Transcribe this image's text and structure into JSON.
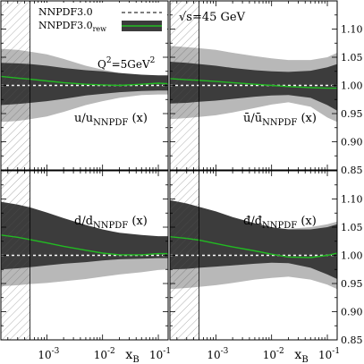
{
  "chart_data": {
    "type": "area",
    "x_scale": "log",
    "xlim": [
      0.00015,
      0.15
    ],
    "ylim": [
      0.85,
      1.15
    ],
    "x_tick_labels": [
      "10^-3",
      "10^-2",
      "10^-1"
    ],
    "y_tick_labels": [
      "0.85",
      "0.90",
      "0.95",
      "1.00",
      "1.05",
      "1.10"
    ],
    "xlabel": "x_B",
    "hatched_region_x": [
      0.00015,
      0.0005
    ],
    "legend": {
      "placement": "top",
      "entries": [
        {
          "label": "NNPDF3.0",
          "style": "dashed"
        },
        {
          "label": "NNPDF3.0_rew",
          "style": "green-line-dark-band"
        }
      ]
    },
    "annotations": [
      {
        "panel": 0,
        "text": "Q^2=5GeV^2"
      },
      {
        "panel": 1,
        "text": "√s=45 GeV"
      }
    ],
    "colors": {
      "light_band": "#b8b8b8",
      "dark_band": "#3c3c3c",
      "central_rew": "#22bb22",
      "baseline": "#ffffff"
    },
    "panels": [
      {
        "label": "u/u_NNPDF (x)",
        "x": [
          0.00015,
          0.0003,
          0.0005,
          0.001,
          0.002,
          0.005,
          0.01,
          0.02,
          0.05,
          0.1,
          0.15
        ],
        "nnpdf_band_low": [
          0.935,
          0.937,
          0.94,
          0.945,
          0.953,
          0.965,
          0.972,
          0.978,
          0.983,
          0.984,
          0.984
        ],
        "nnpdf_band_high": [
          1.065,
          1.063,
          1.06,
          1.055,
          1.047,
          1.035,
          1.028,
          1.022,
          1.017,
          1.016,
          1.016
        ],
        "rew_band_low": [
          0.965,
          0.967,
          0.969,
          0.972,
          0.976,
          0.982,
          0.985,
          0.988,
          0.99,
          0.991,
          0.991
        ],
        "rew_band_high": [
          1.04,
          1.039,
          1.038,
          1.035,
          1.031,
          1.027,
          1.025,
          1.022,
          1.019,
          1.018,
          1.018
        ],
        "rew_central": [
          1.016,
          1.013,
          1.011,
          1.008,
          1.005,
          1.002,
          1.001,
          1.0,
          1.002,
          1.004,
          1.003
        ]
      },
      {
        "label": "ū/ū_NNPDF (x)",
        "x": [
          0.00015,
          0.0003,
          0.0005,
          0.001,
          0.002,
          0.005,
          0.01,
          0.02,
          0.05,
          0.1,
          0.15
        ],
        "nnpdf_band_low": [
          0.94,
          0.942,
          0.944,
          0.947,
          0.952,
          0.96,
          0.966,
          0.97,
          0.962,
          0.943,
          0.935
        ],
        "nnpdf_band_high": [
          1.07,
          1.068,
          1.066,
          1.063,
          1.058,
          1.052,
          1.048,
          1.045,
          1.045,
          1.05,
          1.058
        ],
        "rew_band_low": [
          0.968,
          0.969,
          0.971,
          0.973,
          0.976,
          0.98,
          0.982,
          0.983,
          0.978,
          0.965,
          0.955
        ],
        "rew_band_high": [
          1.042,
          1.04,
          1.038,
          1.035,
          1.031,
          1.027,
          1.025,
          1.024,
          1.026,
          1.032,
          1.038
        ],
        "rew_central": [
          1.012,
          1.01,
          1.009,
          1.007,
          1.005,
          1.002,
          1.0,
          0.998,
          0.996,
          0.995,
          0.995
        ]
      },
      {
        "label": "d/d_NNPDF (x)",
        "x": [
          0.00015,
          0.0003,
          0.0005,
          0.001,
          0.002,
          0.005,
          0.01,
          0.02,
          0.05,
          0.1,
          0.15
        ],
        "nnpdf_band_low": [
          0.945,
          0.947,
          0.949,
          0.951,
          0.954,
          0.958,
          0.962,
          0.966,
          0.97,
          0.974,
          0.975
        ],
        "nnpdf_band_high": [
          1.09,
          1.085,
          1.08,
          1.072,
          1.062,
          1.05,
          1.042,
          1.035,
          1.03,
          1.028,
          1.028
        ],
        "rew_band_low": [
          0.975,
          0.977,
          0.979,
          0.982,
          0.985,
          0.988,
          0.991,
          0.993,
          0.994,
          0.995,
          0.995
        ],
        "rew_band_high": [
          1.095,
          1.09,
          1.085,
          1.076,
          1.066,
          1.054,
          1.046,
          1.04,
          1.036,
          1.034,
          1.034
        ],
        "rew_central": [
          1.036,
          1.032,
          1.028,
          1.022,
          1.016,
          1.009,
          1.004,
          1.001,
          1.001,
          1.003,
          1.003
        ]
      },
      {
        "label": "đ/đ_NNPDF (x)",
        "x": [
          0.00015,
          0.0003,
          0.0005,
          0.001,
          0.002,
          0.005,
          0.01,
          0.02,
          0.05,
          0.1,
          0.15
        ],
        "nnpdf_band_low": [
          0.94,
          0.942,
          0.944,
          0.947,
          0.951,
          0.957,
          0.96,
          0.962,
          0.957,
          0.948,
          0.94
        ],
        "nnpdf_band_high": [
          1.085,
          1.08,
          1.075,
          1.068,
          1.06,
          1.052,
          1.048,
          1.047,
          1.05,
          1.055,
          1.06
        ],
        "rew_band_low": [
          0.975,
          0.976,
          0.978,
          0.98,
          0.982,
          0.985,
          0.987,
          0.986,
          0.978,
          0.966,
          0.958
        ],
        "rew_band_high": [
          1.098,
          1.092,
          1.086,
          1.078,
          1.068,
          1.057,
          1.05,
          1.046,
          1.046,
          1.05,
          1.055
        ],
        "rew_central": [
          1.033,
          1.03,
          1.027,
          1.021,
          1.015,
          1.008,
          1.002,
          0.997,
          0.996,
          1.0,
          1.004
        ]
      }
    ]
  }
}
